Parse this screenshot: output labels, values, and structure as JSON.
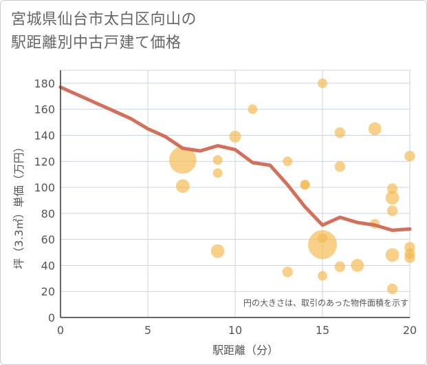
{
  "title": {
    "line1": "宮城県仙台市太白区向山の",
    "line2": "駅距離別中古戸建て価格"
  },
  "chart_data": {
    "type": "scatter",
    "xlabel": "駅距離（分）",
    "ylabel": "坪（3.3㎡）単価（万円）",
    "xlim": [
      0,
      20
    ],
    "ylim": [
      0,
      190
    ],
    "x_ticks": [
      0,
      5,
      10,
      15,
      20
    ],
    "y_ticks": [
      0,
      20,
      40,
      60,
      80,
      100,
      120,
      140,
      160,
      180
    ],
    "grid": true,
    "note": "円の大きさは、取引のあった物件面積を示す",
    "colors": {
      "bubble": "#f5b94f",
      "line": "#d4705a",
      "grid": "#c8d3e6",
      "axis": "#333333"
    },
    "bubbles": [
      {
        "x": 7,
        "y": 121,
        "size": 8
      },
      {
        "x": 7,
        "y": 101,
        "size": 2
      },
      {
        "x": 9,
        "y": 121,
        "size": 1
      },
      {
        "x": 9,
        "y": 111,
        "size": 1
      },
      {
        "x": 9,
        "y": 51,
        "size": 2
      },
      {
        "x": 10,
        "y": 139,
        "size": 1.5
      },
      {
        "x": 11,
        "y": 160,
        "size": 1
      },
      {
        "x": 13,
        "y": 120,
        "size": 1
      },
      {
        "x": 13,
        "y": 35,
        "size": 1.2
      },
      {
        "x": 14,
        "y": 102,
        "size": 1
      },
      {
        "x": 14,
        "y": 102,
        "size": 1
      },
      {
        "x": 15,
        "y": 180,
        "size": 1
      },
      {
        "x": 15,
        "y": 56,
        "size": 9
      },
      {
        "x": 15,
        "y": 61,
        "size": 1
      },
      {
        "x": 15,
        "y": 32,
        "size": 1
      },
      {
        "x": 16,
        "y": 142,
        "size": 1.2
      },
      {
        "x": 16,
        "y": 116,
        "size": 1.2
      },
      {
        "x": 16,
        "y": 39,
        "size": 1.2
      },
      {
        "x": 17,
        "y": 40,
        "size": 1.8
      },
      {
        "x": 18,
        "y": 145,
        "size": 1.8
      },
      {
        "x": 18,
        "y": 72,
        "size": 1
      },
      {
        "x": 19,
        "y": 99,
        "size": 1.2
      },
      {
        "x": 19,
        "y": 92,
        "size": 2
      },
      {
        "x": 19,
        "y": 82,
        "size": 1.2
      },
      {
        "x": 19,
        "y": 48,
        "size": 2
      },
      {
        "x": 19,
        "y": 22,
        "size": 1.2
      },
      {
        "x": 20,
        "y": 124,
        "size": 1.2
      },
      {
        "x": 20,
        "y": 54,
        "size": 1.2
      },
      {
        "x": 20,
        "y": 49,
        "size": 1.2
      },
      {
        "x": 20,
        "y": 46,
        "size": 1.2
      }
    ],
    "trend_line": {
      "x": [
        0,
        1,
        2,
        3,
        4,
        5,
        6,
        7,
        8,
        9,
        10,
        11,
        12,
        13,
        14,
        15,
        16,
        17,
        18,
        19,
        20
      ],
      "y": [
        177,
        171,
        165,
        159,
        153,
        145,
        139,
        130,
        128,
        132,
        129,
        119,
        117,
        102,
        85,
        71,
        77,
        73,
        71,
        67,
        68
      ]
    }
  }
}
